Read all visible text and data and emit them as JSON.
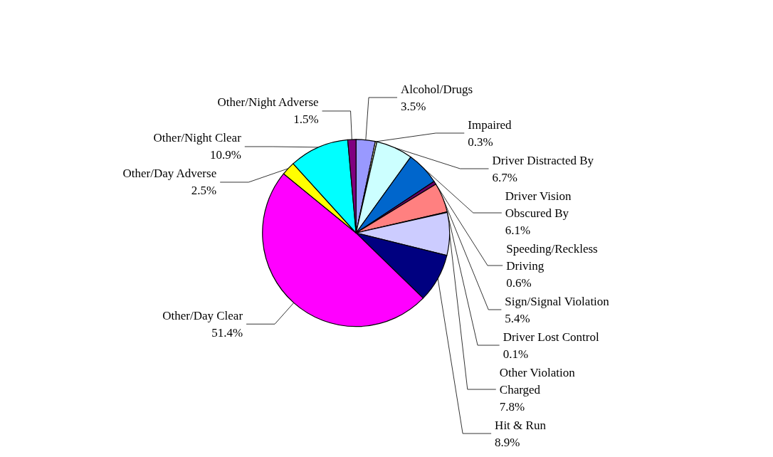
{
  "chart_data": {
    "type": "pie",
    "categories": [
      "Alcohol/Drugs",
      "Impaired",
      "Driver Distracted By",
      "Driver Vision Obscured By",
      "Speeding/Reckless Driving",
      "Sign/Signal Violation",
      "Driver Lost Control",
      "Other Violation Charged",
      "Hit & Run",
      "Other/Day Clear",
      "Other/Day Adverse",
      "Other/Night Clear",
      "Other/Night Adverse"
    ],
    "values": [
      3.5,
      0.3,
      6.7,
      6.1,
      0.6,
      5.4,
      0.1,
      7.8,
      8.9,
      51.4,
      2.5,
      10.9,
      1.5
    ],
    "value_labels": [
      "3.5%",
      "0.3%",
      "6.7%",
      "6.1%",
      "0.6%",
      "5.4%",
      "0.1%",
      "7.8%",
      "8.9%",
      "51.4%",
      "2.5%",
      "10.9%",
      "1.5%"
    ],
    "colors": [
      "#9999ff",
      "#ffffcc",
      "#ccffff",
      "#0066cc",
      "#660066",
      "#ff8080",
      "#993366",
      "#ccccff",
      "#000080",
      "#ff00ff",
      "#ffff00",
      "#00ffff",
      "#800080"
    ],
    "legend": false
  }
}
